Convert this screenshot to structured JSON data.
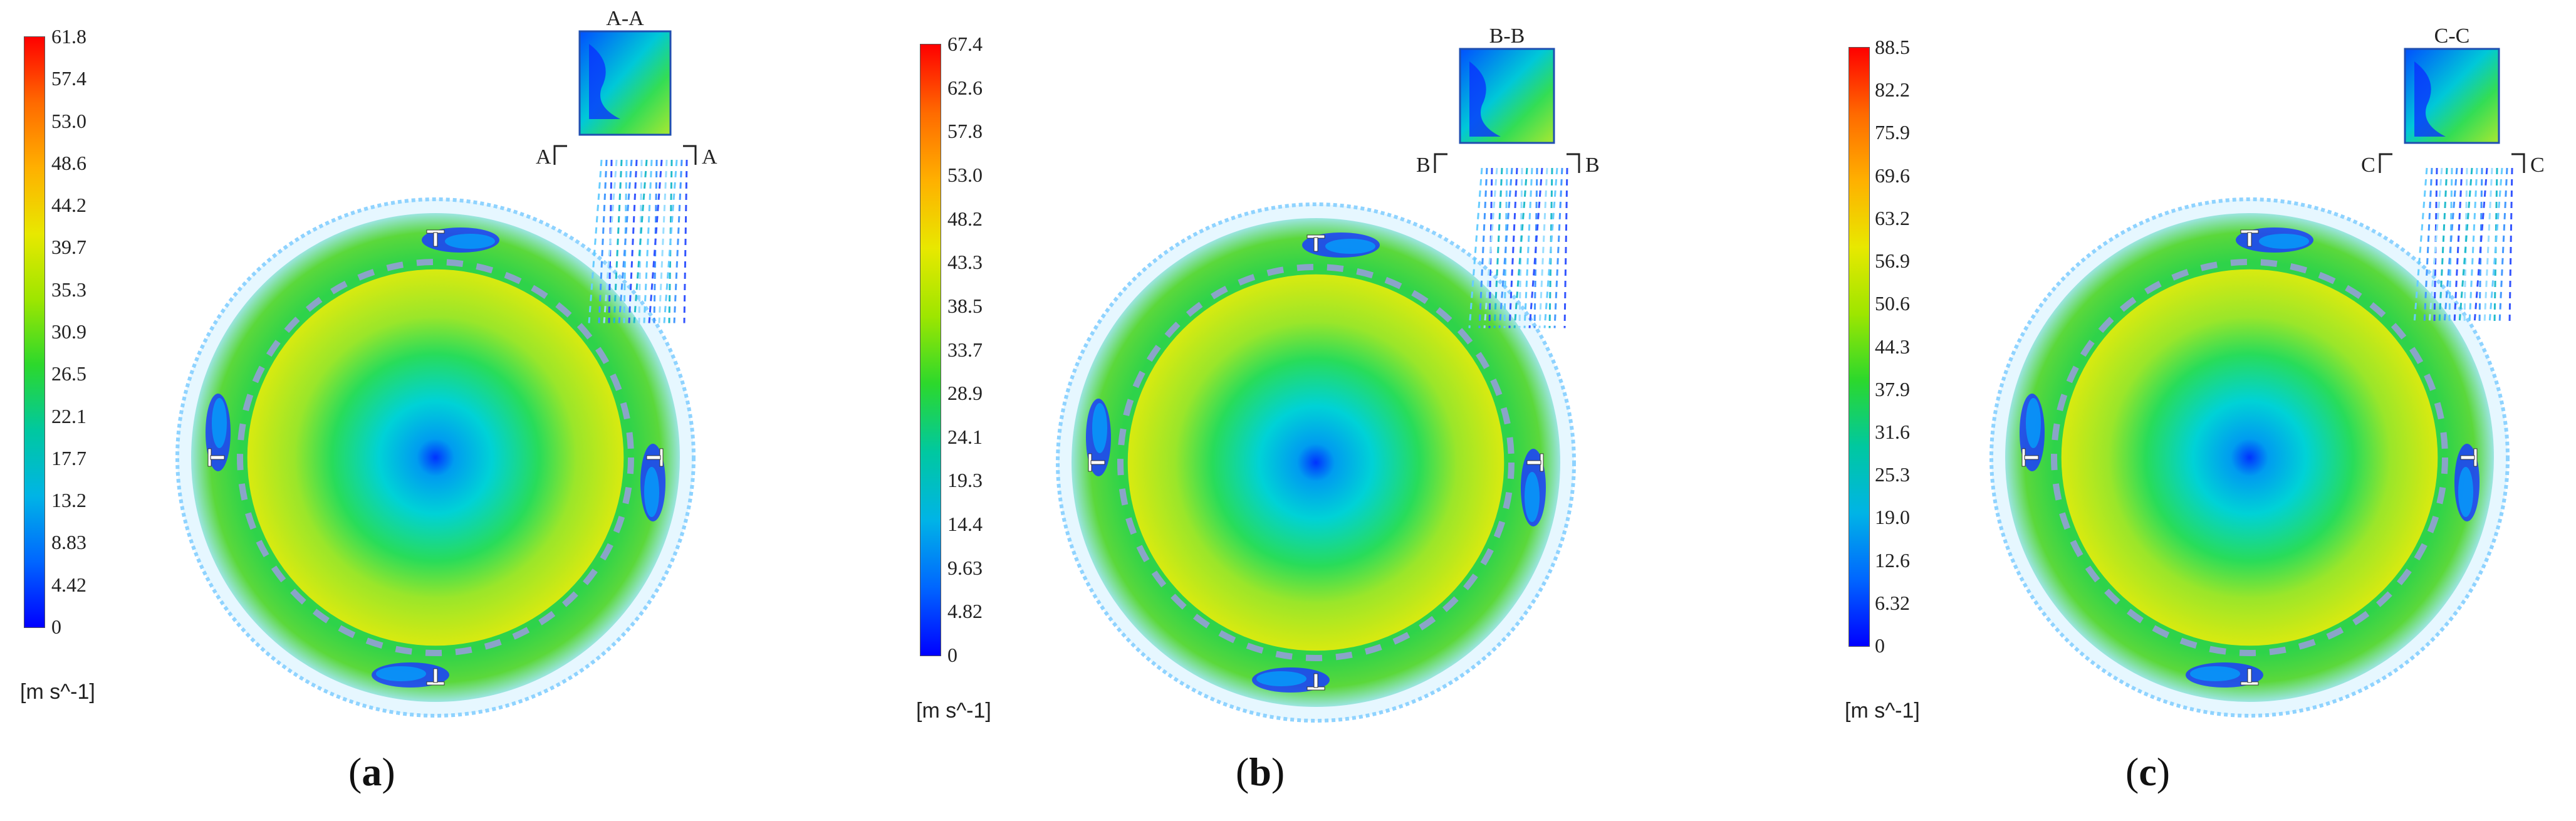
{
  "panels": [
    {
      "label": "a",
      "section_label": "A-A",
      "section_mark": "A",
      "colorbar_ticks": [
        "61.8",
        "57.4",
        "53.0",
        "48.6",
        "44.2",
        "39.7",
        "35.3",
        "30.9",
        "26.5",
        "22.1",
        "17.7",
        "13.2",
        "8.83",
        "4.42",
        "0"
      ],
      "colorbar_unit": "[m s^-1]"
    },
    {
      "label": "b",
      "section_label": "B-B",
      "section_mark": "B",
      "colorbar_ticks": [
        "67.4",
        "62.6",
        "57.8",
        "53.0",
        "48.2",
        "43.3",
        "38.5",
        "33.7",
        "28.9",
        "24.1",
        "19.3",
        "14.4",
        "9.63",
        "4.82",
        "0"
      ],
      "colorbar_unit": "[m s^-1]"
    },
    {
      "label": "c",
      "section_label": "C-C",
      "section_mark": "C",
      "colorbar_ticks": [
        "88.5",
        "82.2",
        "75.9",
        "69.6",
        "63.2",
        "56.9",
        "50.6",
        "44.3",
        "37.9",
        "31.6",
        "25.3",
        "19.0",
        "12.6",
        "6.32",
        "0"
      ],
      "colorbar_unit": "[m s^-1]"
    }
  ],
  "colors": {
    "colormap": [
      "#ff0000",
      "#ff6a00",
      "#ffb000",
      "#e8e800",
      "#9ee600",
      "#2cd82c",
      "#00c8a0",
      "#00b4e6",
      "#0066ff",
      "#0000ff"
    ]
  }
}
